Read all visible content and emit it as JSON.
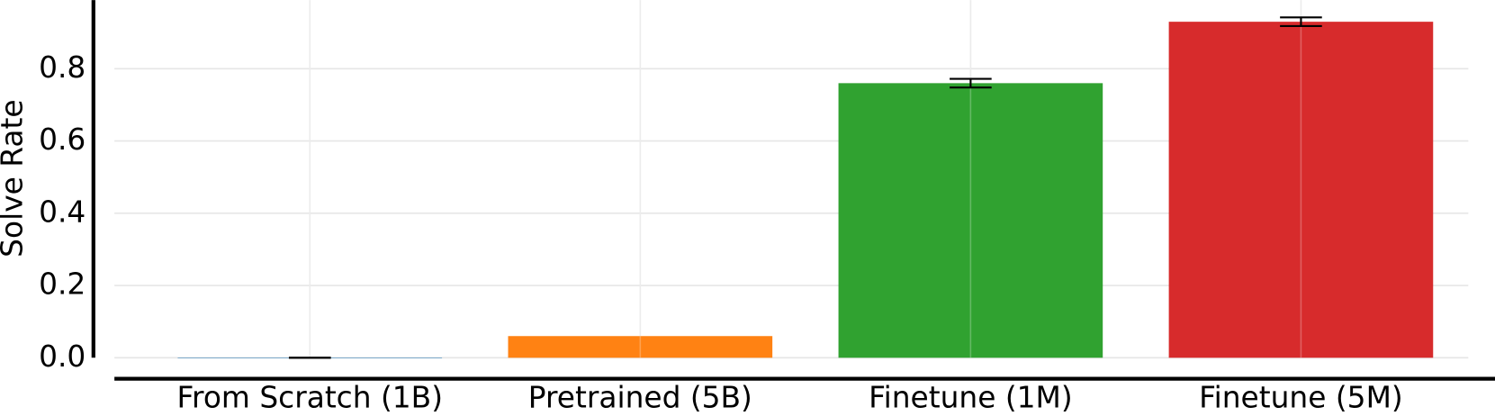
{
  "chart_data": {
    "type": "bar",
    "y_label": "Solve Rate",
    "categories": [
      "From Scratch (1B)",
      "Pretrained (5B)",
      "Finetune (1M)",
      "Finetune (5M)"
    ],
    "values": [
      0,
      0.06,
      0.76,
      0.93
    ],
    "errors": [
      0,
      null,
      0.012,
      0.012
    ],
    "colors": [
      "#1f77b4",
      "#ff7f0e",
      "#2ca02c",
      "#d62728"
    ],
    "ylim": [
      0,
      0.99
    ],
    "yticks": [
      {
        "value": 0,
        "label": "0.0"
      },
      {
        "value": 0.2,
        "label": "0.2"
      },
      {
        "value": 0.4,
        "label": "0.4"
      },
      {
        "value": 0.6,
        "label": "0.6"
      },
      {
        "value": 0.8,
        "label": "0.8"
      }
    ],
    "grid": true
  }
}
